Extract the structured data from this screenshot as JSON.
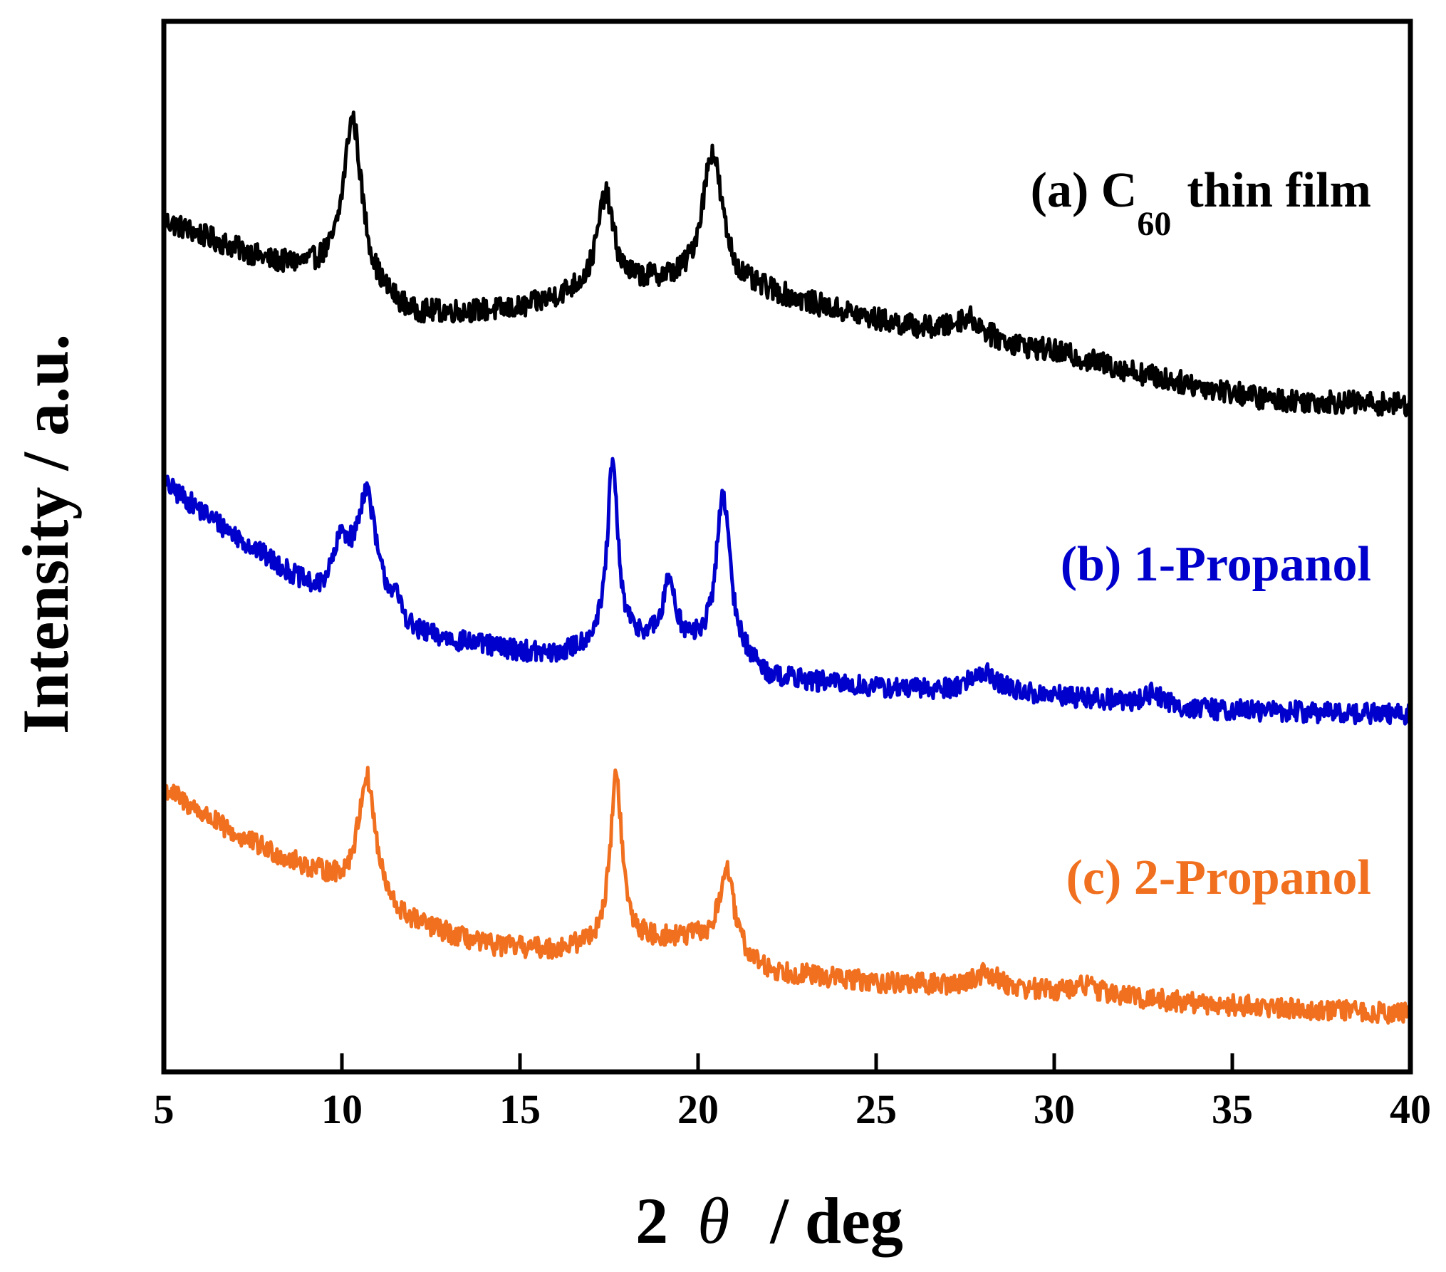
{
  "chart_data": {
    "type": "line",
    "xlabel": {
      "prefix": "2",
      "symbol": "θ",
      "suffix": "/ deg"
    },
    "ylabel": "Intensity / a.u.",
    "xlim": [
      5,
      40
    ],
    "ylim": [
      0,
      100
    ],
    "xticks": [
      5,
      10,
      15,
      20,
      25,
      30,
      35,
      40
    ],
    "x_tick_labels": [
      "5",
      "10",
      "15",
      "20",
      "25",
      "30",
      "35",
      "40"
    ],
    "y_ticks_shown": false,
    "grid": false,
    "series": [
      {
        "name": "(a) C60 thin film",
        "label_prefix": "(a) C",
        "label_sub": "60",
        "label_suffix": "thin film",
        "color": "#000000",
        "baseline": [
          [
            5,
            81
          ],
          [
            8,
            77
          ],
          [
            9.5,
            76
          ],
          [
            12,
            72
          ],
          [
            15,
            72.5
          ],
          [
            16.5,
            74
          ],
          [
            18.8,
            75
          ],
          [
            22,
            74
          ],
          [
            25,
            71.5
          ],
          [
            28,
            69.5
          ],
          [
            30,
            68.5
          ],
          [
            33,
            66
          ],
          [
            36,
            64
          ],
          [
            40,
            63.5
          ]
        ],
        "peaks": [
          {
            "center": 10.3,
            "height": 16,
            "width": 0.32
          },
          {
            "center": 17.4,
            "height": 9,
            "width": 0.28
          },
          {
            "center": 20.4,
            "height": 13,
            "width": 0.35
          },
          {
            "center": 27.6,
            "height": 2,
            "width": 0.5
          }
        ],
        "noise": 1.1
      },
      {
        "name": "(b) 1-Propanol",
        "label_prefix": "(b) 1-Propanol",
        "label_sub": "",
        "label_suffix": "",
        "color": "#0000cc",
        "baseline": [
          [
            5,
            56
          ],
          [
            7,
            51
          ],
          [
            9.3,
            45.5
          ],
          [
            10,
            47
          ],
          [
            12,
            41.5
          ],
          [
            14,
            40.5
          ],
          [
            16,
            39.5
          ],
          [
            17,
            40.5
          ],
          [
            18.5,
            41
          ],
          [
            19.5,
            40.5
          ],
          [
            21,
            40
          ],
          [
            22,
            37.5
          ],
          [
            25,
            36.5
          ],
          [
            28,
            36
          ],
          [
            31,
            35.5
          ],
          [
            34,
            34.5
          ],
          [
            40,
            34
          ]
        ],
        "peaks": [
          {
            "center": 10.0,
            "height": 3,
            "width": 0.25
          },
          {
            "center": 10.7,
            "height": 10,
            "width": 0.3
          },
          {
            "center": 11.5,
            "height": 1.5,
            "width": 0.25
          },
          {
            "center": 17.6,
            "height": 17,
            "width": 0.18
          },
          {
            "center": 19.2,
            "height": 6,
            "width": 0.2
          },
          {
            "center": 20.7,
            "height": 15,
            "width": 0.22
          },
          {
            "center": 28.0,
            "height": 2,
            "width": 0.5
          },
          {
            "center": 32.8,
            "height": 1.2,
            "width": 0.3
          }
        ],
        "noise": 1.0
      },
      {
        "name": "(c) 2-Propanol",
        "label_prefix": "(c) 2-Propanol",
        "label_sub": "",
        "label_suffix": "",
        "color": "#f07020",
        "baseline": [
          [
            5,
            27
          ],
          [
            7,
            22.5
          ],
          [
            9.5,
            18.5
          ],
          [
            11.5,
            14.5
          ],
          [
            14,
            12
          ],
          [
            16,
            11.5
          ],
          [
            17,
            12
          ],
          [
            19,
            12.5
          ],
          [
            20,
            12.5
          ],
          [
            22,
            9.5
          ],
          [
            25,
            8.5
          ],
          [
            28,
            8
          ],
          [
            31,
            7.5
          ],
          [
            34,
            6.5
          ],
          [
            40,
            5.5
          ]
        ],
        "peaks": [
          {
            "center": 10.7,
            "height": 12,
            "width": 0.3
          },
          {
            "center": 17.7,
            "height": 16,
            "width": 0.2
          },
          {
            "center": 20.8,
            "height": 8,
            "width": 0.25
          },
          {
            "center": 28.1,
            "height": 1.5,
            "width": 0.4
          },
          {
            "center": 30.9,
            "height": 0.8,
            "width": 0.3
          }
        ],
        "noise": 1.0
      }
    ]
  }
}
